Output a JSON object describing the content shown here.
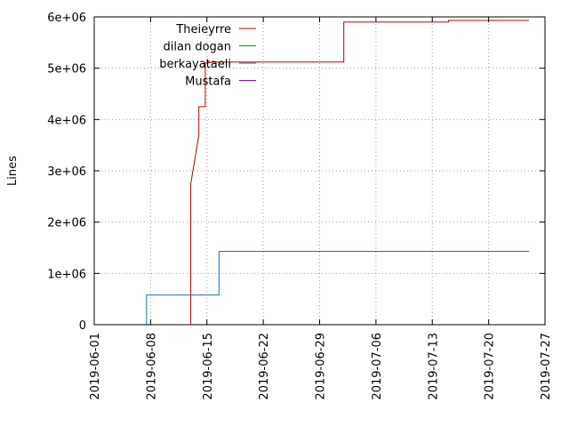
{
  "chart_data": {
    "type": "line",
    "step": true,
    "ylabel": "Lines",
    "xlabel": "",
    "xlim": [
      "2019-06-01",
      "2019-07-27"
    ],
    "ylim": [
      0,
      6000000
    ],
    "x_ticks": [
      "2019-06-01",
      "2019-06-08",
      "2019-06-15",
      "2019-06-22",
      "2019-06-29",
      "2019-07-06",
      "2019-07-13",
      "2019-07-20",
      "2019-07-27"
    ],
    "y_ticks": [
      {
        "value": 0,
        "label": "0"
      },
      {
        "value": 1000000,
        "label": "1e+06"
      },
      {
        "value": 2000000,
        "label": "2e+06"
      },
      {
        "value": 3000000,
        "label": "3e+06"
      },
      {
        "value": 4000000,
        "label": "4e+06"
      },
      {
        "value": 5000000,
        "label": "5e+06"
      },
      {
        "value": 6000000,
        "label": "6e+06"
      }
    ],
    "grid": true,
    "legend_position": "top-left",
    "series": [
      {
        "name": "Theieyrre",
        "color": "#c00000",
        "points": [
          [
            "2019-06-13",
            0
          ],
          [
            "2019-06-13",
            2750000
          ],
          [
            "2019-06-14",
            3700000
          ],
          [
            "2019-06-14",
            4250000
          ],
          [
            "2019-06-14.8",
            4250000
          ],
          [
            "2019-06-14.8",
            5100000
          ],
          [
            "2019-06-16",
            5120000
          ],
          [
            "2019-07-02",
            5120000
          ],
          [
            "2019-07-02",
            5900000
          ],
          [
            "2019-07-15",
            5900000
          ],
          [
            "2019-07-15",
            5930000
          ],
          [
            "2019-07-25",
            5930000
          ]
        ]
      },
      {
        "name": "dilan dogan",
        "color": "#00a000",
        "points": []
      },
      {
        "name": "berkayataeli",
        "color": "#1a6fb0",
        "points": [
          [
            "2019-06-07.5",
            0
          ],
          [
            "2019-06-07.5",
            580000
          ],
          [
            "2019-06-16.5",
            580000
          ],
          [
            "2019-06-16.5",
            1430000
          ],
          [
            "2019-07-25",
            1430000
          ]
        ]
      },
      {
        "name": "Mustafa",
        "color": "#9400d3",
        "points": []
      }
    ]
  }
}
